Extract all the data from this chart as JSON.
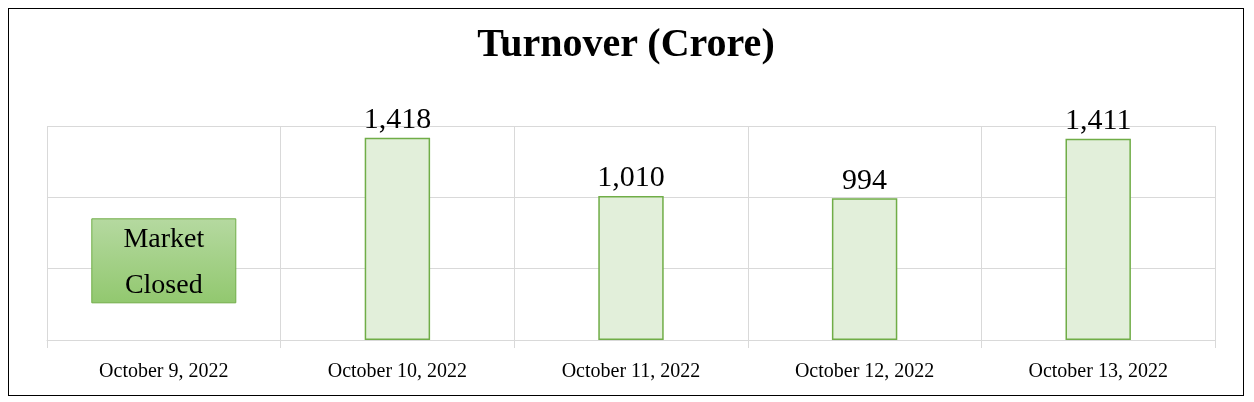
{
  "chart_data": {
    "type": "bar",
    "title": "Turnover (Crore)",
    "categories": [
      "October 9, 2022",
      "October 10, 2022",
      "October 11, 2022",
      "October 12, 2022",
      "October 13, 2022"
    ],
    "values": [
      null,
      1418,
      1010,
      994,
      1411
    ],
    "value_labels": [
      null,
      "1,418",
      "1,010",
      "994",
      "1,411"
    ],
    "color": "#e2efda",
    "ylim": [
      0,
      1500
    ],
    "yticks": [
      {
        "value": 0,
        "label": null
      },
      {
        "value": 500,
        "label": null
      },
      {
        "value": 1000,
        "label": null
      },
      {
        "value": 1500,
        "label": null
      }
    ],
    "tick_labels": "x",
    "grid": true,
    "annotations": [
      "Market Closed"
    ]
  }
}
